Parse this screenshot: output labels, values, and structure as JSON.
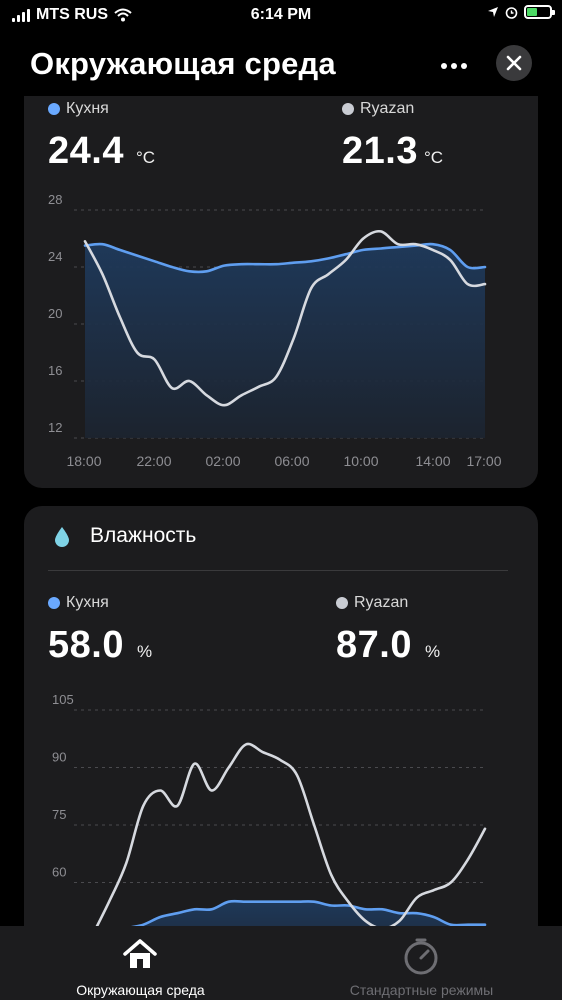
{
  "status": {
    "carrier": "MTS RUS",
    "time": "6:14 PM"
  },
  "header": {
    "title": "Окружающая среда"
  },
  "temperature": {
    "series": [
      {
        "name": "Кухня",
        "value": "24.4",
        "unit": "°C",
        "color": "#6aa9ff"
      },
      {
        "name": "Ryazan",
        "value": "21.3",
        "unit": "°C",
        "color": "#c9ccd3"
      }
    ],
    "chart_data": {
      "type": "line",
      "yticks": [
        "28",
        "24",
        "20",
        "16",
        "12"
      ],
      "xticks": [
        "18:00",
        "22:00",
        "02:00",
        "06:00",
        "10:00",
        "14:00",
        "17:00"
      ],
      "ylim": [
        12,
        28
      ],
      "series": [
        {
          "name": "Кухня",
          "x": [
            0,
            1,
            2,
            3,
            4,
            5,
            6,
            7,
            8,
            9,
            10,
            11,
            12,
            13,
            14,
            15,
            16,
            17,
            18,
            19,
            20,
            21,
            22,
            23
          ],
          "y": [
            25.5,
            25.6,
            25.2,
            24.8,
            24.4,
            24.0,
            23.7,
            23.7,
            24.1,
            24.2,
            24.2,
            24.2,
            24.3,
            24.4,
            24.6,
            24.9,
            25.2,
            25.3,
            25.4,
            25.5,
            25.6,
            25.2,
            24.0,
            24.0
          ]
        },
        {
          "name": "Ryazan",
          "x": [
            0,
            1,
            2,
            3,
            4,
            5,
            6,
            7,
            8,
            9,
            10,
            11,
            12,
            13,
            14,
            15,
            16,
            17,
            18,
            19,
            20,
            21,
            22,
            23
          ],
          "y": [
            25.8,
            23.5,
            20.5,
            18.0,
            17.5,
            15.5,
            16.0,
            15.0,
            14.3,
            15.0,
            15.6,
            16.3,
            19.0,
            22.5,
            23.5,
            24.5,
            26.0,
            26.5,
            25.6,
            25.6,
            25.2,
            24.5,
            22.8,
            22.8
          ]
        }
      ]
    }
  },
  "humidity": {
    "title": "Влажность",
    "series": [
      {
        "name": "Кухня",
        "value": "58.0",
        "unit": "%",
        "color": "#6aa9ff"
      },
      {
        "name": "Ryazan",
        "value": "87.0",
        "unit": "%",
        "color": "#c9ccd3"
      }
    ],
    "chart_data": {
      "type": "line",
      "yticks": [
        "105",
        "90",
        "75",
        "60"
      ],
      "ylim": [
        45,
        105
      ],
      "series": [
        {
          "name": "Кухня",
          "x": [
            0,
            1,
            2,
            3,
            4,
            5,
            6,
            7,
            8,
            9,
            10,
            11,
            12,
            13,
            14,
            15,
            16,
            17,
            18,
            19,
            20,
            21,
            22,
            23
          ],
          "y": [
            46,
            46,
            48,
            49,
            51,
            52,
            53,
            53,
            55,
            55,
            55,
            55,
            55,
            55,
            54,
            54,
            53,
            53,
            52,
            52,
            51,
            49,
            49,
            49
          ]
        },
        {
          "name": "Ryazan",
          "x": [
            0,
            1,
            2,
            3,
            4,
            5,
            6,
            7,
            8,
            9,
            10,
            11,
            12,
            13,
            14,
            15,
            16,
            17,
            18,
            19,
            20,
            21,
            22,
            23
          ],
          "y": [
            46,
            55,
            65,
            80,
            84,
            80,
            91,
            84,
            90,
            96,
            94,
            92,
            88,
            75,
            62,
            55,
            50,
            48,
            50,
            56,
            58,
            60,
            66,
            74
          ]
        }
      ]
    }
  },
  "tabs": [
    {
      "label": "Окружающая среда",
      "active": true
    },
    {
      "label": "Стандартные режимы",
      "active": false
    }
  ]
}
